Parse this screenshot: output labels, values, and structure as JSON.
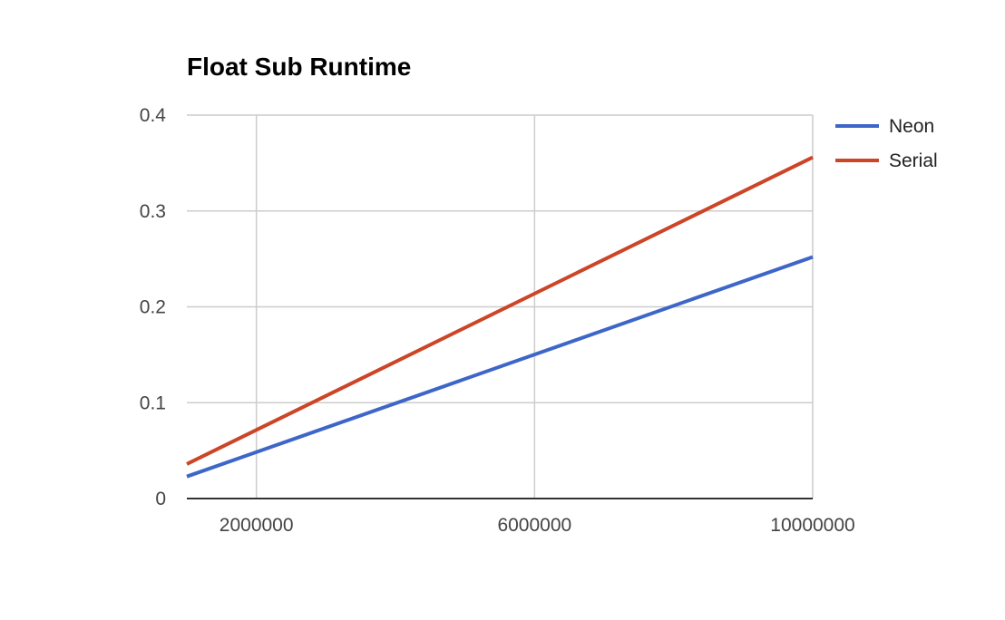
{
  "chart_data": {
    "type": "line",
    "title": "Float Sub Runtime",
    "xlabel": "",
    "ylabel": "",
    "x": [
      1000000,
      10000000
    ],
    "xlim": [
      1000000,
      10000000
    ],
    "ylim": [
      0,
      0.4
    ],
    "x_ticks": [
      2000000,
      6000000,
      10000000
    ],
    "x_tick_labels": [
      "2000000",
      "6000000",
      "10000000"
    ],
    "y_ticks": [
      0,
      0.1,
      0.2,
      0.3,
      0.4
    ],
    "y_tick_labels": [
      "0",
      "0.1",
      "0.2",
      "0.3",
      "0.4"
    ],
    "grid": true,
    "legend_position": "right",
    "series": [
      {
        "name": "Neon",
        "color": "#3e66c8",
        "values": [
          0.023,
          0.252
        ]
      },
      {
        "name": "Serial",
        "color": "#cc4527",
        "values": [
          0.036,
          0.356
        ]
      }
    ]
  }
}
